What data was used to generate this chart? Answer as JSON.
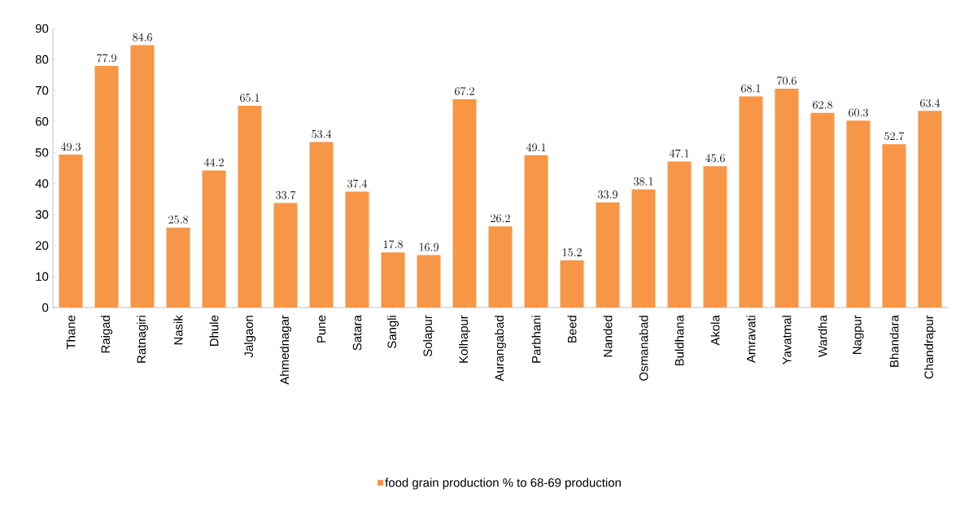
{
  "chart_data": {
    "type": "bar",
    "categories": [
      "Thane",
      "Raigad",
      "Ratnagiri",
      "Nasik",
      "Dhule",
      "Jalgaon",
      "Ahmednagar",
      "Pune",
      "Satara",
      "Sangli",
      "Solapur",
      "Kolhapur",
      "Aurangabad",
      "Parbhani",
      "Beed",
      "Nanded",
      "Osmanabad",
      "Buldhana",
      "Akola",
      "Amravati",
      "Yavatmal",
      "Wardha",
      "Nagpur",
      "Bhandara",
      "Chandrapur"
    ],
    "series": [
      {
        "name": "food grain production % to 68-69 production",
        "color": "#f79646",
        "values": [
          49.3,
          77.9,
          84.6,
          25.8,
          44.2,
          65.1,
          33.7,
          53.4,
          37.4,
          17.8,
          16.9,
          67.2,
          26.2,
          49.1,
          15.2,
          33.9,
          38.1,
          47.1,
          45.6,
          68.1,
          70.6,
          62.8,
          60.3,
          52.7,
          63.4
        ]
      }
    ],
    "ylim": [
      0,
      90
    ],
    "yticks": [
      0,
      10,
      20,
      30,
      40,
      50,
      60,
      70,
      80,
      90
    ],
    "data_labels": true,
    "legend": "bottom"
  }
}
